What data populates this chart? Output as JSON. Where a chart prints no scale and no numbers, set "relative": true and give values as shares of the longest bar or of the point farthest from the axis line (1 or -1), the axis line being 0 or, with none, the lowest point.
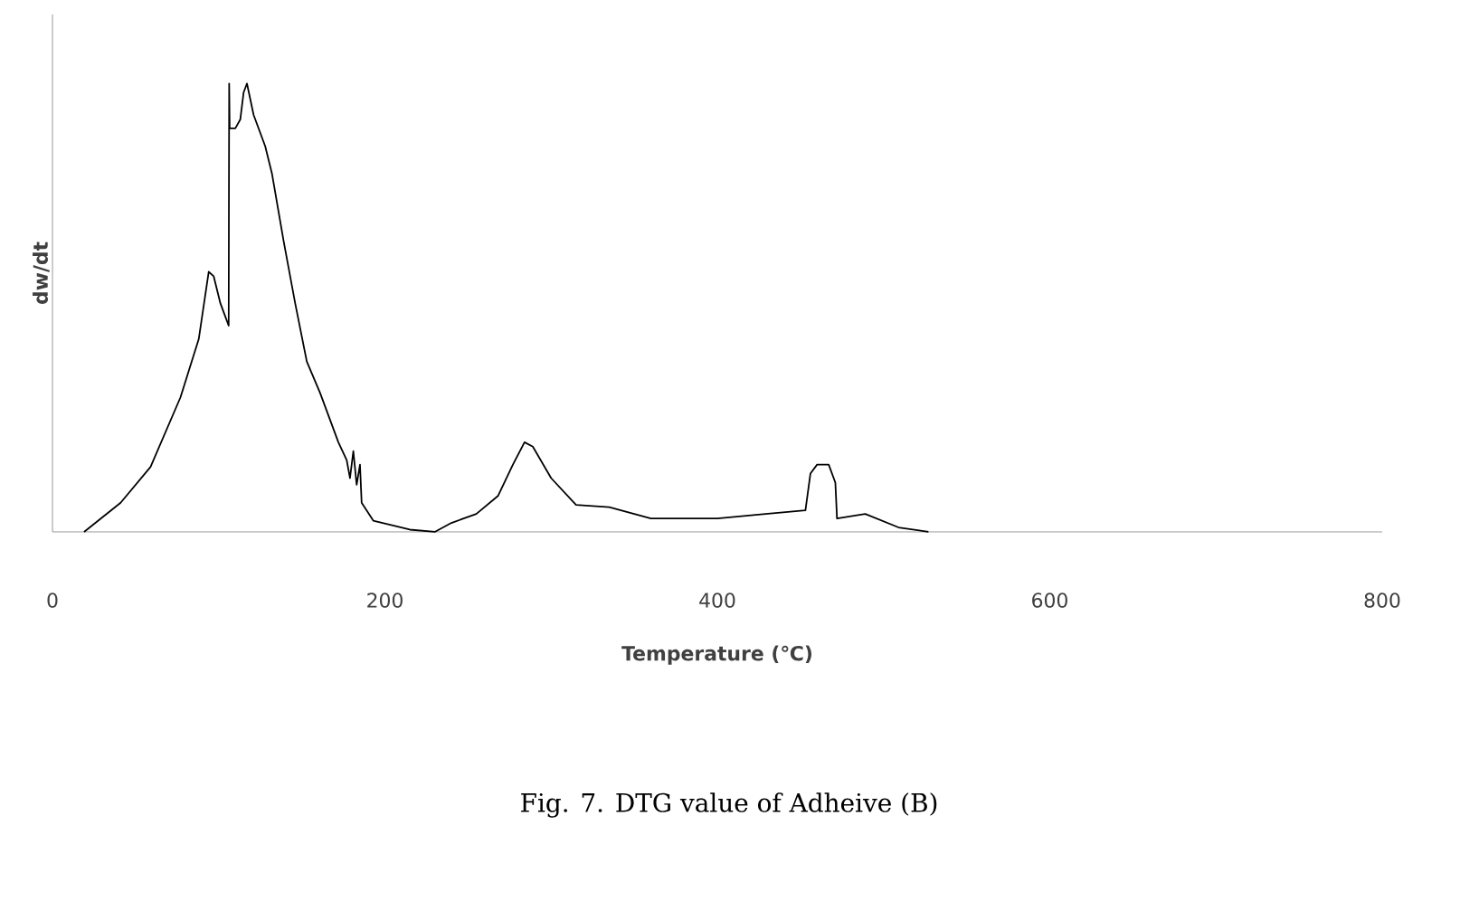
{
  "chart_data": {
    "type": "line",
    "relative": true,
    "xlabel": "Temperature (℃)",
    "ylabel": "dw/dt",
    "annotations": [
      "Fig. 7. DTG value of Adheive (B)"
    ],
    "xlim": [
      0,
      800
    ],
    "xticks": [
      0,
      200,
      400,
      600,
      800
    ],
    "series": [
      {
        "color": "#000000",
        "x": [
          19,
          41,
          59,
          77,
          88,
          94,
          97,
          101,
          103,
          106,
          106.3,
          106.6,
          110,
          113,
          115,
          117,
          121,
          128,
          132,
          139,
          146,
          153,
          161,
          172,
          177,
          179,
          181,
          183,
          185,
          186,
          193,
          215,
          230,
          240,
          255,
          268,
          277,
          284,
          289,
          300,
          315,
          335,
          360,
          400,
          429,
          453,
          456,
          460,
          467,
          471,
          472,
          489,
          509,
          527
        ],
        "values": [
          0,
          0.065,
          0.145,
          0.3,
          0.43,
          0.58,
          0.57,
          0.51,
          0.49,
          0.46,
          1.0,
          0.9,
          0.9,
          0.92,
          0.98,
          1.0,
          0.93,
          0.86,
          0.8,
          0.65,
          0.51,
          0.38,
          0.31,
          0.2,
          0.16,
          0.12,
          0.18,
          0.105,
          0.15,
          0.065,
          0.025,
          0.005,
          0,
          0.02,
          0.04,
          0.08,
          0.15,
          0.2,
          0.19,
          0.12,
          0.06,
          0.055,
          0.03,
          0.03,
          0.04,
          0.048,
          0.13,
          0.15,
          0.15,
          0.11,
          0.03,
          0.04,
          0.01,
          0
        ]
      }
    ]
  }
}
